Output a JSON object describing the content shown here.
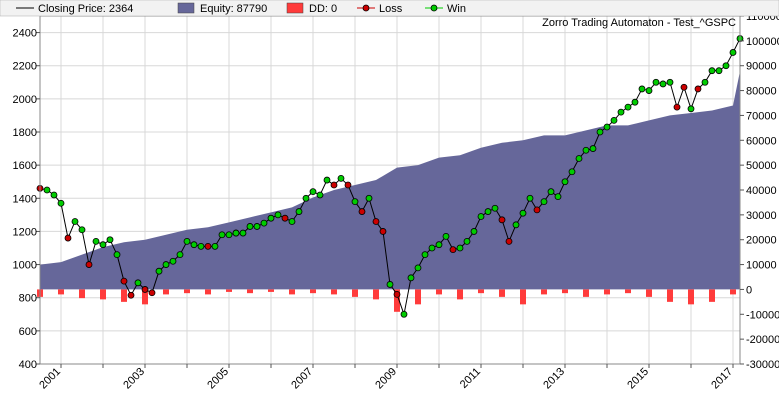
{
  "chart_data": {
    "type": "line",
    "title": "Zorro Trading Automaton - Test_^GSPC",
    "legend": {
      "placement": "top",
      "items": [
        {
          "label": "Closing Price: 2364",
          "kind": "line",
          "color": "#000000"
        },
        {
          "label": "Equity: 87790",
          "kind": "area",
          "color": "#66679a"
        },
        {
          "label": "DD: 0",
          "kind": "area",
          "color": "#ff3b3b"
        },
        {
          "label": "Loss",
          "kind": "marker",
          "color": "#cc0000"
        },
        {
          "label": "Win",
          "kind": "marker",
          "color": "#00cc00"
        }
      ]
    },
    "x_axis": {
      "type": "date",
      "range": [
        "2000-07-01",
        "2017-03-01"
      ],
      "tick_labels": [
        "2001",
        "2003",
        "2005",
        "2007",
        "2009",
        "2011",
        "2013",
        "2015",
        "2017"
      ],
      "grid": true
    },
    "y_left": {
      "label": "",
      "range": [
        400,
        2500
      ],
      "tick_labels": [
        "400",
        "600",
        "800",
        "1000",
        "1200",
        "1400",
        "1600",
        "1800",
        "2000",
        "2200",
        "2400"
      ]
    },
    "y_right": {
      "label": "",
      "range": [
        -30000,
        110000
      ],
      "tick_labels": [
        "-30000",
        "-20000",
        "-10000",
        "0",
        "10000",
        "20000",
        "30000",
        "40000",
        "50000",
        "60000",
        "70000",
        "80000",
        "90000",
        "100000",
        "110000"
      ]
    },
    "colors": {
      "equity": "#66679a",
      "drawdown": "#ff3b3b",
      "price": "#000000",
      "win": "#00cc00",
      "loss": "#cc0000",
      "grid": "#d8d8d8"
    },
    "series": [
      {
        "name": "Closing Price",
        "axis": "left",
        "x": [
          "2000-07",
          "2000-09",
          "2000-11",
          "2001-01",
          "2001-03",
          "2001-05",
          "2001-07",
          "2001-09",
          "2001-11",
          "2002-01",
          "2002-03",
          "2002-05",
          "2002-07",
          "2002-09",
          "2002-11",
          "2003-01",
          "2003-03",
          "2003-05",
          "2003-07",
          "2003-09",
          "2003-11",
          "2004-01",
          "2004-03",
          "2004-05",
          "2004-07",
          "2004-09",
          "2004-11",
          "2005-01",
          "2005-03",
          "2005-05",
          "2005-07",
          "2005-09",
          "2005-11",
          "2006-01",
          "2006-03",
          "2006-05",
          "2006-07",
          "2006-09",
          "2006-11",
          "2007-01",
          "2007-03",
          "2007-05",
          "2007-07",
          "2007-09",
          "2007-11",
          "2008-01",
          "2008-03",
          "2008-05",
          "2008-07",
          "2008-09",
          "2008-11",
          "2009-01",
          "2009-03",
          "2009-05",
          "2009-07",
          "2009-09",
          "2009-11",
          "2010-01",
          "2010-03",
          "2010-05",
          "2010-07",
          "2010-09",
          "2010-11",
          "2011-01",
          "2011-03",
          "2011-05",
          "2011-07",
          "2011-09",
          "2011-11",
          "2012-01",
          "2012-03",
          "2012-05",
          "2012-07",
          "2012-09",
          "2012-11",
          "2013-01",
          "2013-03",
          "2013-05",
          "2013-07",
          "2013-09",
          "2013-11",
          "2014-01",
          "2014-03",
          "2014-05",
          "2014-07",
          "2014-09",
          "2014-11",
          "2015-01",
          "2015-03",
          "2015-05",
          "2015-07",
          "2015-09",
          "2015-11",
          "2016-01",
          "2016-03",
          "2016-05",
          "2016-07",
          "2016-09",
          "2016-11",
          "2017-01",
          "2017-03"
        ],
        "values": [
          1460,
          1450,
          1420,
          1370,
          1160,
          1260,
          1210,
          1000,
          1140,
          1120,
          1150,
          1060,
          900,
          815,
          890,
          850,
          830,
          960,
          1000,
          1020,
          1060,
          1140,
          1120,
          1110,
          1110,
          1110,
          1180,
          1180,
          1190,
          1190,
          1230,
          1230,
          1250,
          1280,
          1300,
          1280,
          1260,
          1320,
          1400,
          1440,
          1420,
          1510,
          1480,
          1520,
          1480,
          1380,
          1320,
          1400,
          1260,
          1200,
          880,
          820,
          700,
          920,
          980,
          1060,
          1100,
          1120,
          1170,
          1090,
          1100,
          1140,
          1200,
          1290,
          1320,
          1340,
          1270,
          1140,
          1240,
          1310,
          1400,
          1330,
          1380,
          1440,
          1410,
          1500,
          1560,
          1640,
          1690,
          1700,
          1800,
          1830,
          1870,
          1920,
          1950,
          1980,
          2060,
          2050,
          2100,
          2090,
          2100,
          1950,
          2070,
          1940,
          2060,
          2100,
          2170,
          2170,
          2200,
          2280,
          2364
        ]
      },
      {
        "name": "Equity",
        "axis": "right",
        "x": [
          "2000-07",
          "2001-01",
          "2001-07",
          "2002-01",
          "2002-07",
          "2003-01",
          "2003-07",
          "2004-01",
          "2004-07",
          "2005-01",
          "2005-07",
          "2006-01",
          "2006-07",
          "2007-01",
          "2007-07",
          "2008-01",
          "2008-07",
          "2009-01",
          "2009-07",
          "2010-01",
          "2010-07",
          "2011-01",
          "2011-07",
          "2012-01",
          "2012-07",
          "2013-01",
          "2013-07",
          "2014-01",
          "2014-07",
          "2015-01",
          "2015-07",
          "2016-01",
          "2016-07",
          "2017-01",
          "2017-03"
        ],
        "values": [
          10000,
          11000,
          14000,
          17000,
          19000,
          20000,
          22000,
          24000,
          25000,
          27000,
          29000,
          31000,
          33000,
          37000,
          40000,
          42000,
          44000,
          49000,
          50000,
          53000,
          54000,
          57000,
          59000,
          60000,
          62000,
          62000,
          64000,
          66000,
          66000,
          68000,
          70000,
          71000,
          72000,
          74000,
          87790
        ]
      },
      {
        "name": "DD",
        "axis": "right",
        "x": [
          "2000-07",
          "2001-01",
          "2001-07",
          "2002-01",
          "2002-07",
          "2003-01",
          "2003-07",
          "2004-01",
          "2004-07",
          "2005-01",
          "2005-07",
          "2006-01",
          "2006-07",
          "2007-01",
          "2007-07",
          "2008-01",
          "2008-07",
          "2009-01",
          "2009-07",
          "2010-01",
          "2010-07",
          "2011-01",
          "2011-07",
          "2012-01",
          "2012-07",
          "2013-01",
          "2013-07",
          "2014-01",
          "2014-07",
          "2015-01",
          "2015-07",
          "2016-01",
          "2016-07",
          "2017-01",
          "2017-03"
        ],
        "values": [
          -3000,
          -2000,
          -3500,
          -4000,
          -5000,
          -6000,
          -2000,
          -1500,
          -2000,
          -1000,
          -1500,
          -1000,
          -2000,
          -1500,
          -2000,
          -3000,
          -4000,
          -9000,
          -6000,
          -2000,
          -4000,
          -1500,
          -3000,
          -6000,
          -2000,
          -1500,
          -3000,
          -2000,
          -1500,
          -3000,
          -5000,
          -6000,
          -5000,
          -2000,
          0
        ]
      }
    ],
    "markers": {
      "win": [
        "2000-09",
        "2000-11",
        "2001-01",
        "2001-05",
        "2001-07",
        "2001-11",
        "2002-01",
        "2002-03",
        "2002-05",
        "2002-11",
        "2003-05",
        "2003-07",
        "2003-09",
        "2003-11",
        "2004-01",
        "2004-03",
        "2004-05",
        "2004-09",
        "2004-11",
        "2005-01",
        "2005-03",
        "2005-05",
        "2005-07",
        "2005-09",
        "2005-11",
        "2006-01",
        "2006-03",
        "2006-07",
        "2006-09",
        "2006-11",
        "2007-01",
        "2007-03",
        "2007-05",
        "2007-09",
        "2008-01",
        "2008-05",
        "2008-11",
        "2009-03",
        "2009-05",
        "2009-07",
        "2009-09",
        "2009-11",
        "2010-01",
        "2010-03",
        "2010-07",
        "2010-09",
        "2010-11",
        "2011-01",
        "2011-03",
        "2011-05",
        "2011-11",
        "2012-01",
        "2012-03",
        "2012-07",
        "2012-09",
        "2012-11",
        "2013-01",
        "2013-03",
        "2013-05",
        "2013-07",
        "2013-09",
        "2013-11",
        "2014-01",
        "2014-03",
        "2014-05",
        "2014-07",
        "2014-09",
        "2014-11",
        "2015-01",
        "2015-03",
        "2015-05",
        "2015-07",
        "2016-01",
        "2016-05",
        "2016-07",
        "2016-09",
        "2016-11",
        "2017-01",
        "2017-03"
      ],
      "loss": [
        "2000-07",
        "2001-03",
        "2001-09",
        "2002-07",
        "2002-09",
        "2003-01",
        "2003-03",
        "2004-07",
        "2005-03",
        "2006-05",
        "2007-07",
        "2007-11",
        "2008-03",
        "2008-07",
        "2008-09",
        "2009-01",
        "2010-05",
        "2011-07",
        "2011-09",
        "2012-05",
        "2015-09",
        "2015-11",
        "2016-03"
      ]
    }
  }
}
